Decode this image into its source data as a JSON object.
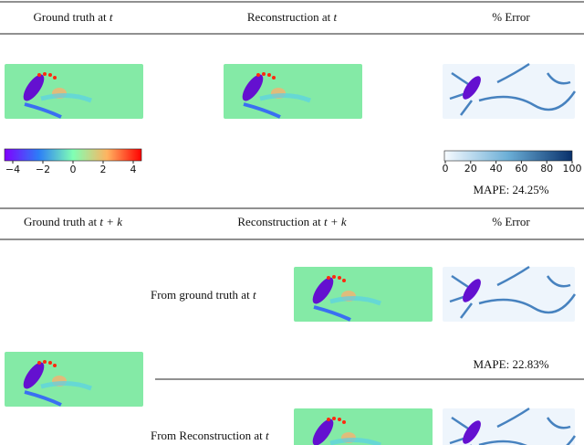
{
  "top_block": {
    "headers": [
      {
        "text": "Ground truth at",
        "var": "t"
      },
      {
        "text": "Reconstruction at",
        "var": "t"
      },
      {
        "text": "% Error"
      }
    ],
    "field_colorbar_ticks": [
      "−4",
      "−2",
      "0",
      "2",
      "4"
    ],
    "error_colorbar_ticks": [
      "0",
      "20",
      "40",
      "60",
      "80",
      "100"
    ],
    "mape": "MAPE: 24.25%"
  },
  "bottom_block": {
    "headers": [
      {
        "text": "Ground truth at",
        "var": "t + k"
      },
      {
        "text": "Reconstruction at",
        "var": "t + k"
      },
      {
        "text": "% Error"
      }
    ],
    "rows": [
      {
        "label": {
          "text": "From ground truth at",
          "var": "t"
        },
        "mape": "MAPE: 22.83%"
      },
      {
        "label": {
          "text": "From Reconstruction at",
          "var": "t"
        }
      }
    ]
  }
}
